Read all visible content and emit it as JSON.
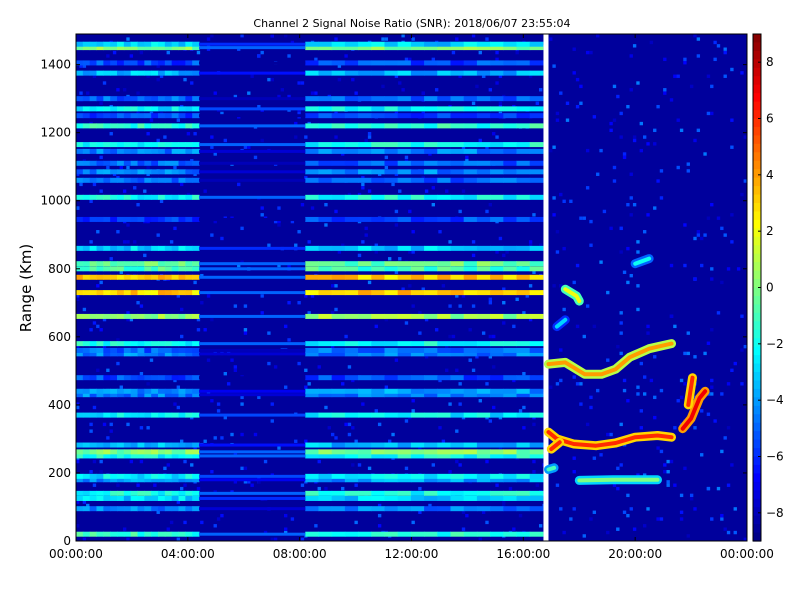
{
  "chart_data": {
    "type": "heatmap",
    "title": "Channel 2 Signal Noise Ratio (SNR): 2018/06/07 23:55:04",
    "xlabel": "",
    "ylabel": "Range (Km)",
    "x_unit": "hours",
    "xlim": [
      0,
      24
    ],
    "ylim": [
      0,
      1490
    ],
    "x_ticks": [
      0,
      4,
      8,
      12,
      16,
      20,
      24
    ],
    "x_tick_labels": [
      "00:00:00",
      "04:00:00",
      "08:00:00",
      "12:00:00",
      "16:00:00",
      "20:00:00",
      "00:00:00"
    ],
    "y_ticks": [
      0,
      200,
      400,
      600,
      800,
      1000,
      1200,
      1400
    ],
    "y_tick_labels": [
      "0",
      "200",
      "400",
      "600",
      "800",
      "1000",
      "1200",
      "1400"
    ],
    "colorbar": {
      "colormap": "jet",
      "min": -9,
      "max": 9,
      "ticks": [
        -8,
        -6,
        -4,
        -2,
        0,
        2,
        4,
        6,
        8
      ],
      "tick_labels": [
        "−8",
        "−6",
        "−4",
        "−2",
        "0",
        "2",
        "4",
        "6",
        "8"
      ]
    },
    "background_level": -8.5,
    "no_data_gaps": [
      {
        "x0": 16.72,
        "x1": 16.9
      }
    ],
    "horizontal_bands": [
      {
        "range_km": 20,
        "snr": -1.5
      },
      {
        "range_km": 95,
        "snr": -4.5
      },
      {
        "range_km": 125,
        "snr": -3
      },
      {
        "range_km": 140,
        "snr": -2
      },
      {
        "range_km": 180,
        "snr": -4
      },
      {
        "range_km": 190,
        "snr": -2.5
      },
      {
        "range_km": 250,
        "snr": -2
      },
      {
        "range_km": 262,
        "snr": 0
      },
      {
        "range_km": 282,
        "snr": -3.5
      },
      {
        "range_km": 370,
        "snr": -2.5
      },
      {
        "range_km": 430,
        "snr": -4.5
      },
      {
        "range_km": 440,
        "snr": -4
      },
      {
        "range_km": 480,
        "snr": -5.5
      },
      {
        "range_km": 550,
        "snr": -4.5
      },
      {
        "range_km": 560,
        "snr": -5
      },
      {
        "range_km": 580,
        "snr": -2
      },
      {
        "range_km": 660,
        "snr": 0.5
      },
      {
        "range_km": 730,
        "snr": 3
      },
      {
        "range_km": 775,
        "snr": 3
      },
      {
        "range_km": 800,
        "snr": -1
      },
      {
        "range_km": 815,
        "snr": -0.5
      },
      {
        "range_km": 860,
        "snr": -3
      },
      {
        "range_km": 945,
        "snr": -5.5
      },
      {
        "range_km": 1010,
        "snr": -2
      },
      {
        "range_km": 1060,
        "snr": -5
      },
      {
        "range_km": 1085,
        "snr": -4.5
      },
      {
        "range_km": 1110,
        "snr": -5
      },
      {
        "range_km": 1145,
        "snr": -4.5
      },
      {
        "range_km": 1165,
        "snr": -2
      },
      {
        "range_km": 1220,
        "snr": -1.5
      },
      {
        "range_km": 1250,
        "snr": -5.5
      },
      {
        "range_km": 1270,
        "snr": -2.5
      },
      {
        "range_km": 1300,
        "snr": -5
      },
      {
        "range_km": 1375,
        "snr": -3.5
      },
      {
        "range_km": 1405,
        "snr": -5.5
      },
      {
        "range_km": 1450,
        "snr": 0
      },
      {
        "range_km": 1460,
        "snr": -3
      }
    ],
    "band_time_ranges": [
      [
        0,
        4.4
      ],
      [
        8.2,
        16.7
      ]
    ],
    "echo_traces": [
      {
        "points": [
          [
            16.9,
            520
          ],
          [
            17.5,
            525
          ],
          [
            18.2,
            490
          ],
          [
            18.8,
            490
          ],
          [
            19.3,
            505
          ],
          [
            19.8,
            540
          ],
          [
            20.5,
            565
          ],
          [
            21.3,
            580
          ]
        ],
        "snr": 4
      },
      {
        "points": [
          [
            16.9,
            320
          ],
          [
            17.2,
            300
          ],
          [
            17.8,
            285
          ],
          [
            18.6,
            280
          ],
          [
            19.3,
            288
          ],
          [
            20.0,
            305
          ],
          [
            20.8,
            310
          ],
          [
            21.3,
            305
          ]
        ],
        "snr": 6
      },
      {
        "points": [
          [
            17.0,
            270
          ],
          [
            17.3,
            290
          ]
        ],
        "snr": 6
      },
      {
        "points": [
          [
            17.5,
            740
          ],
          [
            17.9,
            720
          ],
          [
            18.0,
            705
          ]
        ],
        "snr": 2
      },
      {
        "points": [
          [
            17.2,
            630
          ],
          [
            17.5,
            650
          ]
        ],
        "snr": -3
      },
      {
        "points": [
          [
            20.0,
            815
          ],
          [
            20.5,
            830
          ]
        ],
        "snr": -2
      },
      {
        "points": [
          [
            21.7,
            330
          ],
          [
            22.0,
            360
          ],
          [
            22.3,
            420
          ],
          [
            22.5,
            440
          ]
        ],
        "snr": 7
      },
      {
        "points": [
          [
            21.9,
            400
          ],
          [
            22.05,
            480
          ]
        ],
        "snr": 6
      },
      {
        "points": [
          [
            18.0,
            178
          ],
          [
            19.2,
            180
          ],
          [
            19.8,
            180
          ],
          [
            20.8,
            180
          ]
        ],
        "snr": 0
      },
      {
        "points": [
          [
            16.9,
            210
          ],
          [
            17.1,
            215
          ]
        ],
        "snr": -1
      }
    ]
  }
}
